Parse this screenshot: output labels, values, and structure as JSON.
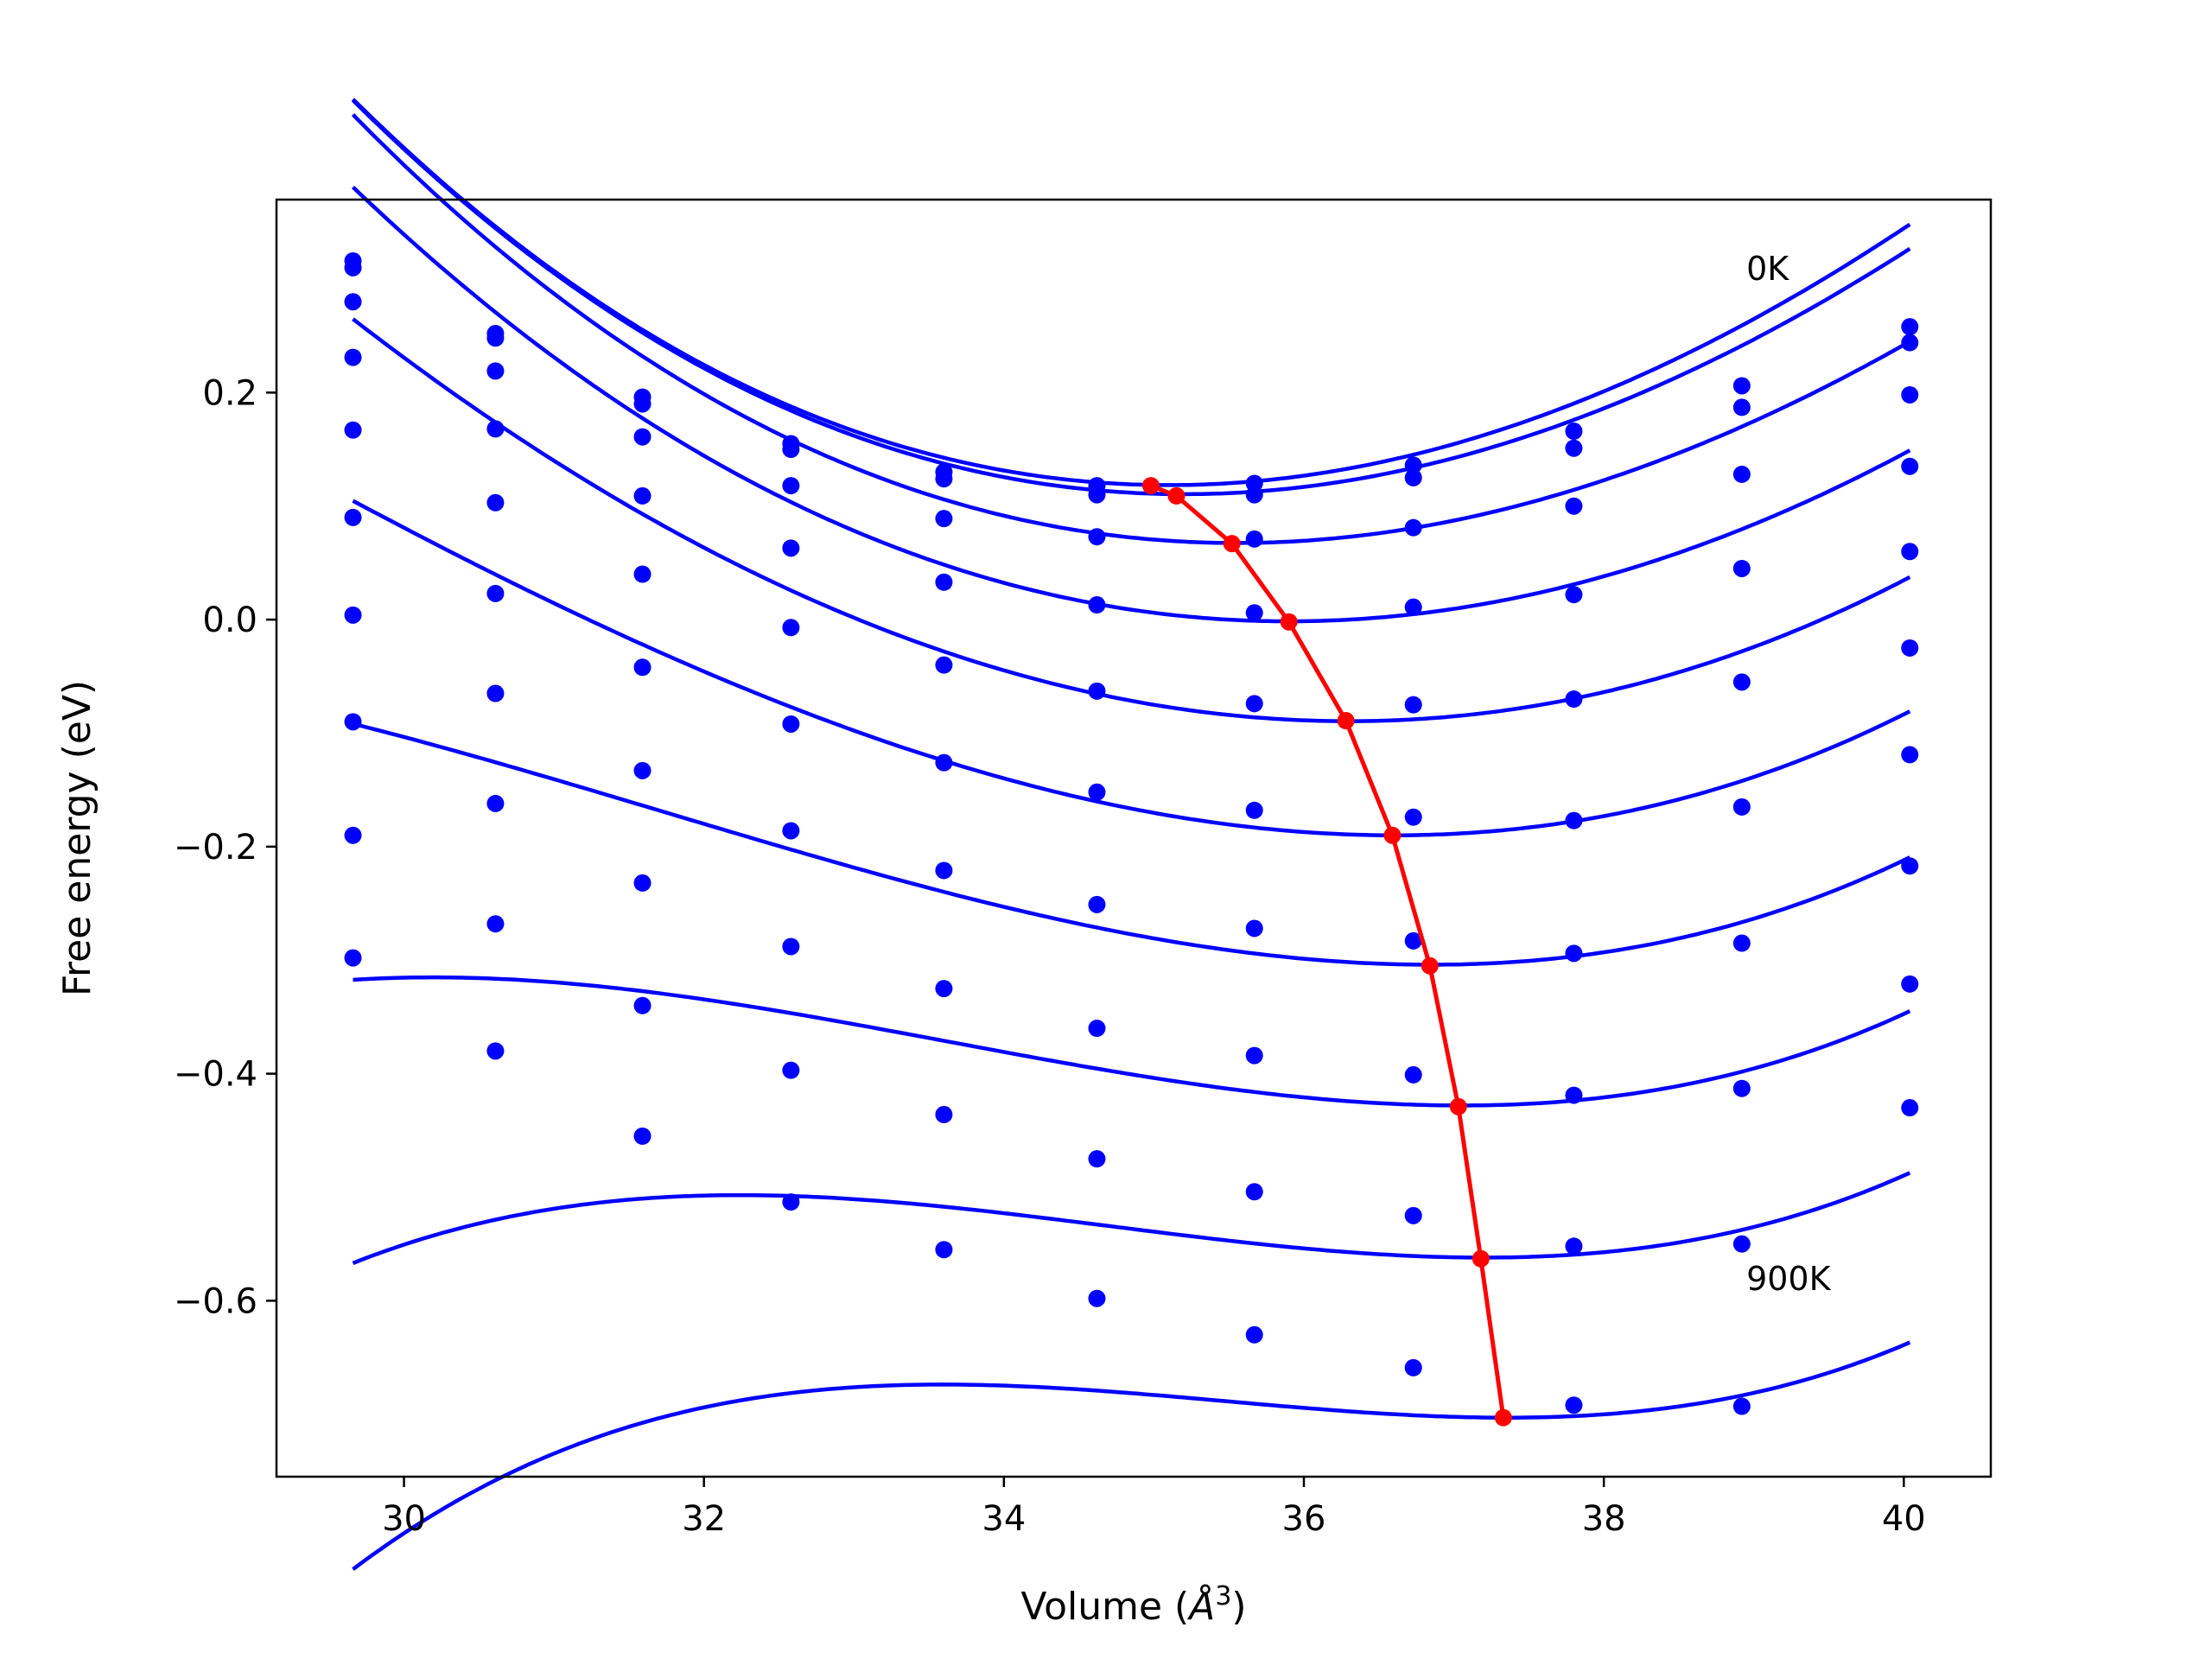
{
  "chart_data": {
    "type": "line",
    "xlabel": "Volume (Å³)",
    "xlabel_plain": "Volume (",
    "xlabel_symbol": "Å",
    "xlabel_exp": "3",
    "xlabel_close": ")",
    "ylabel": "Free energy (eV)",
    "xlim": [
      29.15,
      40.58
    ],
    "ylim": [
      -0.755,
      0.37
    ],
    "xticks": [
      30,
      32,
      34,
      36,
      38,
      40
    ],
    "xtick_labels": [
      "30",
      "32",
      "34",
      "36",
      "38",
      "40"
    ],
    "yticks": [
      -0.6,
      -0.4,
      -0.2,
      0.0,
      0.2
    ],
    "ytick_labels": [
      "−0.6",
      "−0.4",
      "−0.2",
      "0.0",
      "0.2"
    ],
    "grid": false,
    "annotations": [
      {
        "text": "0K",
        "x": 38.95,
        "y": 0.31
      },
      {
        "text": "900K",
        "x": 38.95,
        "y": -0.58
      }
    ],
    "volumes": [
      29.66,
      30.61,
      31.59,
      32.58,
      33.6,
      34.62,
      35.67,
      36.73,
      37.8,
      38.92,
      40.04
    ],
    "series": [
      {
        "color": "#0000ff",
        "points": [
          0.316,
          0.252,
          0.196,
          0.155,
          0.13,
          0.118,
          0.12,
          0.136,
          0.166,
          0.206,
          0.258
        ],
        "fit": {
          "e0": 0.1185,
          "v0": 35.1,
          "a": 0.0104,
          "c": -0.0002
        }
      },
      {
        "color": "#0000ff",
        "points": [
          0.31,
          0.248,
          0.19,
          0.15,
          0.124,
          0.11,
          0.11,
          0.125,
          0.151,
          0.187,
          0.244
        ],
        "fit": {
          "e0": 0.1105,
          "v0": 35.2,
          "a": 0.0102,
          "c": -0.0002
        }
      },
      {
        "color": "#0000ff",
        "points": [
          0.28,
          0.219,
          0.161,
          0.118,
          0.089,
          0.073,
          0.071,
          0.081,
          0.1,
          0.128,
          0.198
        ],
        "fit": {
          "e0": 0.0675,
          "v0": 35.55,
          "a": 0.0097,
          "c": -0.0002
        }
      },
      {
        "color": "#0000ff",
        "points": [
          0.231,
          0.168,
          0.109,
          0.063,
          0.033,
          0.013,
          0.006,
          0.011,
          0.022,
          0.045,
          0.135
        ],
        "fit": {
          "e0": -0.0015,
          "v0": 35.9,
          "a": 0.0092,
          "c": -0.0001
        }
      },
      {
        "color": "#0000ff",
        "points": [
          0.167,
          0.103,
          0.04,
          -0.007,
          -0.04,
          -0.063,
          -0.074,
          -0.075,
          -0.07,
          -0.055,
          0.06
        ],
        "fit": {
          "e0": -0.0895,
          "v0": 36.3,
          "a": 0.0087,
          "c": 0.0001
        }
      },
      {
        "color": "#0000ff",
        "points": [
          0.09,
          0.023,
          -0.042,
          -0.092,
          -0.126,
          -0.152,
          -0.168,
          -0.174,
          -0.177,
          -0.165,
          -0.025
        ],
        "fit": {
          "e0": -0.19,
          "v0": 36.6,
          "a": 0.0082,
          "c": 0.0003
        }
      },
      {
        "color": "#0000ff",
        "points": [
          0.004,
          -0.065,
          -0.133,
          -0.186,
          -0.221,
          -0.251,
          -0.272,
          -0.283,
          -0.294,
          -0.285,
          -0.119
        ],
        "fit": {
          "e0": -0.304,
          "v0": 36.85,
          "a": 0.0077,
          "c": 0.0005
        }
      },
      {
        "color": "#0000ff",
        "points": [
          -0.09,
          -0.162,
          -0.232,
          -0.288,
          -0.325,
          -0.36,
          -0.384,
          -0.401,
          -0.419,
          -0.413,
          -0.217
        ],
        "fit": {
          "e0": -0.428,
          "v0": 37.05,
          "a": 0.0072,
          "c": 0.0007
        }
      },
      {
        "color": "#0000ff",
        "points": [
          -0.19,
          -0.268,
          -0.34,
          -0.397,
          -0.436,
          -0.475,
          -0.504,
          -0.525,
          -0.552,
          -0.55,
          -0.321
        ],
        "fit": {
          "e0": -0.562,
          "v0": 37.2,
          "a": 0.0067,
          "c": 0.0009
        }
      },
      {
        "color": "#0000ff",
        "points": [
          -0.298,
          -0.38,
          -0.455,
          -0.513,
          -0.555,
          -0.598,
          -0.63,
          -0.659,
          -0.692,
          -0.693,
          -0.43
        ],
        "fit": {
          "e0": -0.703,
          "v0": 37.35,
          "a": 0.0062,
          "c": 0.0011
        }
      }
    ],
    "minimum_path": {
      "color": "#ff0000",
      "x": [
        34.98,
        35.15,
        35.52,
        35.9,
        36.28,
        36.59,
        36.84,
        37.03,
        37.18,
        37.33
      ],
      "y": [
        0.118,
        0.109,
        0.067,
        -0.002,
        -0.089,
        -0.19,
        -0.305,
        -0.429,
        -0.563,
        -0.703
      ]
    }
  }
}
